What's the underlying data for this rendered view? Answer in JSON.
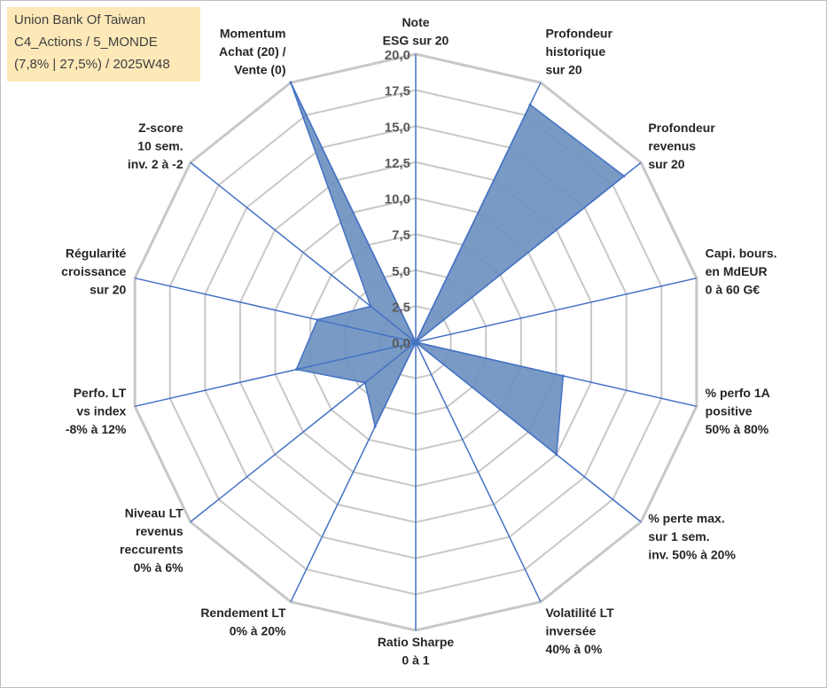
{
  "info_box": {
    "line1": "Union Bank Of Taiwan",
    "line2": "C4_Actions / 5_MONDE",
    "line3": "(7,8% | 27,5%) / 2025W48"
  },
  "colors": {
    "fill": "#6a8fbe",
    "stroke": "#4472c4",
    "grid": "#c8c8c8",
    "info_bg": "#fde9b8"
  },
  "chart_data": {
    "type": "radar",
    "title": "",
    "rmax": 20,
    "ticks": [
      "0,0",
      "2,5",
      "5,0",
      "7,5",
      "10,0",
      "12,5",
      "15,0",
      "17,5",
      "20,0"
    ],
    "tick_values": [
      0,
      2.5,
      5,
      7.5,
      10,
      12.5,
      15,
      17.5,
      20
    ],
    "grid_levels": [
      2.5,
      5,
      7.5,
      10,
      12.5,
      15,
      17.5,
      20
    ],
    "categories": [
      "Note\nESG sur 20",
      "Profondeur\nhistorique\nsur 20",
      "Profondeur\nrevenus\nsur 20",
      "Capi. bours.\nen MdEUR\n0 à 60 G€",
      "% perfo 1A\npositive\n50% à 80%",
      "% perte max.\nsur 1 sem.\ninv. 50% à 20%",
      "Volatilité LT\ninversée\n40% à 0%",
      "Ratio Sharpe\n0 à 1",
      "Rendement LT\n0% à 20%",
      "Niveau LT\nrevenus\nreccurents\n0% à 6%",
      "Perfo. LT\nvs index\n-8% à 12%",
      "Régularité\ncroissance\nsur 20",
      "Z-score\n10 sem.\ninv. 2 à -2",
      "Momentum\nAchat (20) /\nVente (0)"
    ],
    "series": [
      {
        "values": [
          0,
          18.3,
          18.5,
          0,
          10.5,
          12.5,
          0,
          0,
          6.5,
          4.5,
          8.5,
          7,
          4,
          20
        ]
      }
    ]
  }
}
